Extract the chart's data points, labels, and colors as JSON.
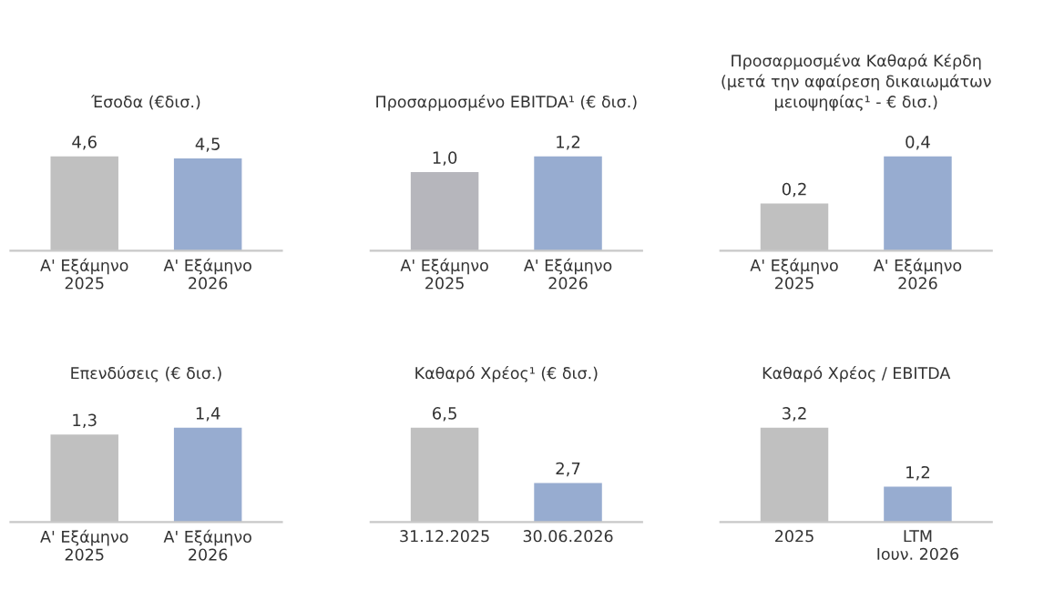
{
  "chart_data": [
    {
      "type": "bar",
      "title": "Έσοδα (€δισ.)",
      "categories": [
        "Α' Εξάμηνο\n2025",
        "Α' Εξάμηνο\n2026"
      ],
      "values": [
        4.6,
        4.5
      ],
      "value_labels": [
        "4,6",
        "4,5"
      ],
      "colors": [
        "#c0c0c0",
        "#97acd0"
      ],
      "tick_labels": "x",
      "grid": false
    },
    {
      "type": "bar",
      "title": "Προσαρμοσμένο EBITDA¹ (€ δισ.)",
      "categories": [
        "Α' Εξάμηνο\n2025",
        "Α' Εξάμηνο\n2026"
      ],
      "values": [
        1.0,
        1.2
      ],
      "value_labels": [
        "1,0",
        "1,2"
      ],
      "colors": [
        "#b6b6bc",
        "#97acd0"
      ],
      "tick_labels": "x",
      "grid": false
    },
    {
      "type": "bar",
      "title": "Προσαρμοσμένα Καθαρά Κέρδη\n(μετά την αφαίρεση δικαιωμάτων\nμειοψηφίας¹ - € δισ.)",
      "categories": [
        "Α' Εξάμηνο\n2025",
        "Α' Εξάμηνο\n2026"
      ],
      "values": [
        0.2,
        0.4
      ],
      "value_labels": [
        "0,2",
        "0,4"
      ],
      "colors": [
        "#c0c0c0",
        "#97acd0"
      ],
      "tick_labels": "x",
      "grid": false
    },
    {
      "type": "bar",
      "title": "Επενδύσεις (€ δισ.)",
      "categories": [
        "Α' Εξάμηνο\n2025",
        "Α' Εξάμηνο\n2026"
      ],
      "values": [
        1.3,
        1.4
      ],
      "value_labels": [
        "1,3",
        "1,4"
      ],
      "colors": [
        "#c0c0c0",
        "#97acd0"
      ],
      "tick_labels": "x",
      "grid": false
    },
    {
      "type": "bar",
      "title": "Καθαρό Χρέος¹ (€ δισ.)",
      "categories": [
        "31.12.2025",
        "30.06.2026"
      ],
      "values": [
        6.5,
        2.7
      ],
      "value_labels": [
        "6,5",
        "2,7"
      ],
      "colors": [
        "#c0c0c0",
        "#97acd0"
      ],
      "tick_labels": "x",
      "grid": false
    },
    {
      "type": "bar",
      "title": "Καθαρό Χρέος / EBITDA",
      "categories": [
        "2025",
        "LTM\nΙουν. 2026"
      ],
      "values": [
        3.2,
        1.2
      ],
      "value_labels": [
        "3,2",
        "1,2"
      ],
      "colors": [
        "#c0c0c0",
        "#97acd0"
      ],
      "tick_labels": "x",
      "grid": false
    }
  ]
}
